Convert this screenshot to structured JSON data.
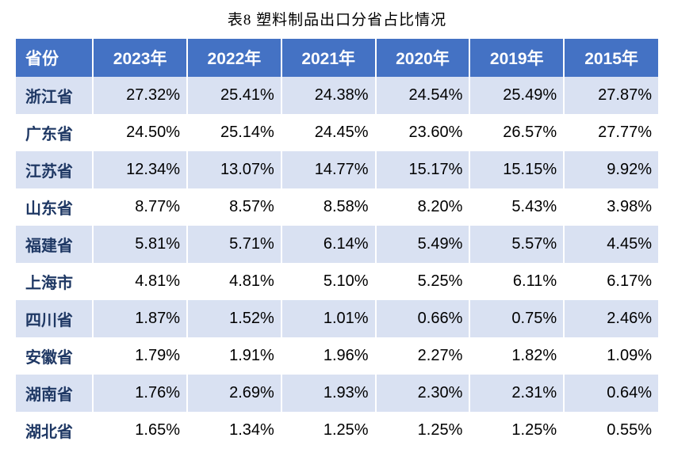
{
  "title": "表8 塑料制品出口分省占比情况",
  "table": {
    "type": "table",
    "header_bg": "#4472c4",
    "header_text_color": "#ffffff",
    "row_odd_bg": "#d9e1f2",
    "row_even_bg": "#ffffff",
    "province_text_color": "#1f3864",
    "cell_text_color": "#000000",
    "header_fontsize": 21,
    "cell_fontsize": 20,
    "columns": [
      "省份",
      "2023年",
      "2022年",
      "2021年",
      "2020年",
      "2019年",
      "2015年"
    ],
    "rows": [
      [
        "浙江省",
        "27.32%",
        "25.41%",
        "24.38%",
        "24.54%",
        "25.49%",
        "27.87%"
      ],
      [
        "广东省",
        "24.50%",
        "25.14%",
        "24.45%",
        "23.60%",
        "26.57%",
        "27.77%"
      ],
      [
        "江苏省",
        "12.34%",
        "13.07%",
        "14.77%",
        "15.17%",
        "15.15%",
        "9.92%"
      ],
      [
        "山东省",
        "8.77%",
        "8.57%",
        "8.58%",
        "8.20%",
        "5.43%",
        "3.98%"
      ],
      [
        "福建省",
        "5.81%",
        "5.71%",
        "6.14%",
        "5.49%",
        "5.57%",
        "4.45%"
      ],
      [
        "上海市",
        "4.81%",
        "4.81%",
        "5.10%",
        "5.25%",
        "6.11%",
        "6.17%"
      ],
      [
        "四川省",
        "1.87%",
        "1.52%",
        "1.01%",
        "0.66%",
        "0.75%",
        "2.46%"
      ],
      [
        "安徽省",
        "1.79%",
        "1.91%",
        "1.96%",
        "2.27%",
        "1.82%",
        "1.09%"
      ],
      [
        "湖南省",
        "1.76%",
        "2.69%",
        "1.93%",
        "2.30%",
        "2.31%",
        "0.64%"
      ],
      [
        "湖北省",
        "1.65%",
        "1.34%",
        "1.25%",
        "1.25%",
        "1.25%",
        "0.55%"
      ]
    ]
  }
}
